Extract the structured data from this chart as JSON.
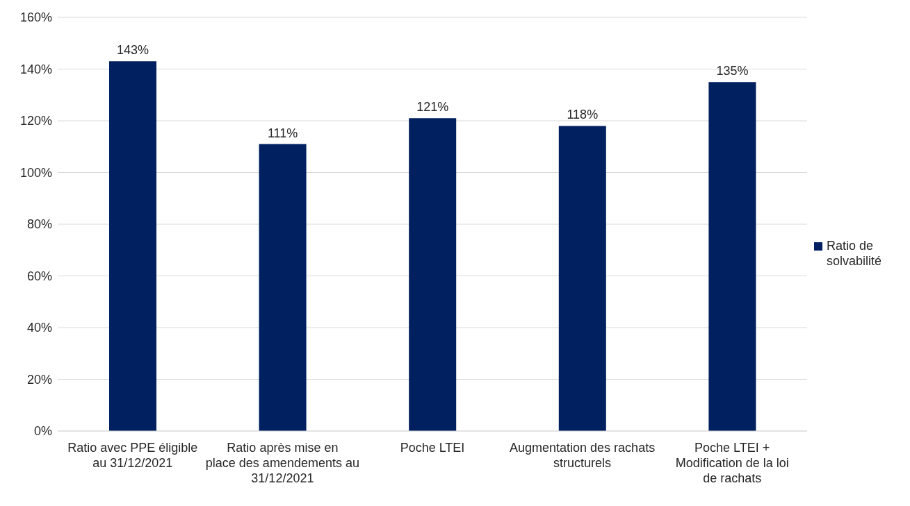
{
  "chart_data": {
    "type": "bar",
    "categories": [
      "Ratio avec PPE éligible au 31/12/2021",
      "Ratio après mise en place des amendements au 31/12/2021",
      "Poche LTEI",
      "Augmentation des rachats structurels",
      "Poche LTEI + Modification de la loi de rachats"
    ],
    "series": [
      {
        "name": "Ratio de solvabilité",
        "color": "#002060",
        "values": [
          143,
          111,
          121,
          118,
          135
        ],
        "value_labels": [
          "143%",
          "111%",
          "121%",
          "118%",
          "135%"
        ]
      }
    ],
    "ylim": [
      0,
      160
    ],
    "yticks": [
      {
        "value": 0,
        "label": "0%"
      },
      {
        "value": 20,
        "label": "20%"
      },
      {
        "value": 40,
        "label": "40%"
      },
      {
        "value": 60,
        "label": "60%"
      },
      {
        "value": 80,
        "label": "80%"
      },
      {
        "value": 100,
        "label": "100%"
      },
      {
        "value": 120,
        "label": "120%"
      },
      {
        "value": 140,
        "label": "140%"
      },
      {
        "value": 160,
        "label": "160%"
      }
    ],
    "grid": "y",
    "legend": "right"
  }
}
